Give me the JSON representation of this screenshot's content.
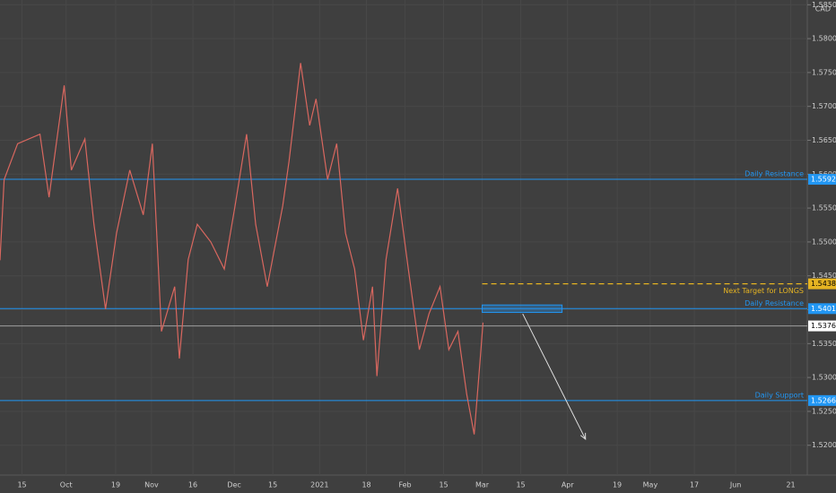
{
  "chart_data": {
    "type": "line",
    "currency": "CAD",
    "series": [
      {
        "color": "#d9675f",
        "x": [
          -8,
          -6.5,
          -1.6,
          6.5,
          9.8,
          15.3,
          17.9,
          22.8,
          26.1,
          30.3,
          34.3,
          39.1,
          44.0,
          47.3,
          50.6,
          55.4,
          57.1,
          60.3,
          63.6,
          68.5,
          73.4,
          77.3,
          81.5,
          84.8,
          89.0,
          94.6,
          96.9,
          101.1,
          104.4,
          106.7,
          110.9,
          114.2,
          117.4,
          120.7,
          123.9,
          127.2,
          128.8,
          132.1,
          136.3,
          140.2,
          144.2,
          147.7,
          151.7,
          154.9,
          158.2,
          161.4,
          164.1,
          166.3,
          167.3
        ],
        "values": [
          1.5473,
          1.5592,
          1.5645,
          1.5659,
          1.5566,
          1.5731,
          1.5606,
          1.5652,
          1.5526,
          1.5401,
          1.5513,
          1.5606,
          1.554,
          1.5645,
          1.5368,
          1.5434,
          1.5328,
          1.5474,
          1.5526,
          1.55,
          1.546,
          1.5553,
          1.5659,
          1.5526,
          1.5434,
          1.5553,
          1.5619,
          1.5764,
          1.5672,
          1.5711,
          1.5592,
          1.5645,
          1.5513,
          1.546,
          1.5355,
          1.5434,
          1.5302,
          1.5474,
          1.5579,
          1.546,
          1.5341,
          1.5394,
          1.5434,
          1.5341,
          1.5368,
          1.5275,
          1.5216,
          1.5328,
          1.5381
        ]
      }
    ],
    "levels": [
      {
        "name": "Daily Resistance",
        "value": 1.55924,
        "color": "#2196f3",
        "style": "solid"
      },
      {
        "name": "Next Target for LONGS",
        "value": 1.54382,
        "color": "#e6b422",
        "style": "dashed"
      },
      {
        "name": "Daily Resistance",
        "value": 1.54016,
        "color": "#2196f3",
        "style": "solid"
      },
      {
        "value": 1.53761,
        "color": "#9e9e9e",
        "style": "solid"
      },
      {
        "name": "Daily Support",
        "value": {
          "value": 1.5266,
          "label": "1.52660"
        },
        "color": "#2196f3",
        "style": "solid"
      }
    ],
    "zone": {
      "x": [
        167,
        196
      ],
      "y": [
        1.5396,
        1.5407
      ],
      "color": "#2196f3"
    },
    "arrow": {
      "x": [
        181.7,
        204.5
      ],
      "y": [
        1.5394,
        1.5209
      ],
      "color": "#dddddd"
    },
    "xlim": [
      -8,
      285
    ],
    "ylim": [
      1.5156,
      1.5857
    ],
    "grid": true,
    "xticks": [
      {
        "value": 0,
        "label": "15"
      },
      {
        "value": 16,
        "label": "Oct"
      },
      {
        "value": 34,
        "label": "19"
      },
      {
        "value": 47,
        "label": "Nov"
      },
      {
        "value": 62,
        "label": "16"
      },
      {
        "value": 77,
        "label": "Dec"
      },
      {
        "value": 91,
        "label": "15"
      },
      {
        "value": 108,
        "label": "2021"
      },
      {
        "value": 125,
        "label": "18"
      },
      {
        "value": 139,
        "label": "Feb"
      },
      {
        "value": 153,
        "label": "15"
      },
      {
        "value": 167,
        "label": "Mar"
      },
      {
        "value": 181,
        "label": "15"
      },
      {
        "value": 198,
        "label": "Apr"
      },
      {
        "value": 216,
        "label": "19"
      },
      {
        "value": 228,
        "label": "May"
      },
      {
        "value": 244,
        "label": "17"
      },
      {
        "value": 259,
        "label": "Jun"
      },
      {
        "value": 279,
        "label": "21"
      }
    ],
    "yticks": [
      {
        "value": 1.52,
        "label": "1.52000"
      },
      {
        "value": 1.525,
        "label": "1.52500"
      },
      {
        "value": 1.53,
        "label": "1.53000"
      },
      {
        "value": 1.535,
        "label": "1.53500"
      },
      {
        "value": 1.54,
        "label": "1.54000"
      },
      {
        "value": 1.545,
        "label": "1.54500"
      },
      {
        "value": 1.55,
        "label": "1.55000"
      },
      {
        "value": 1.555,
        "label": "1.55500"
      },
      {
        "value": 1.56,
        "label": "1.56000"
      },
      {
        "value": 1.565,
        "label": "1.56500"
      },
      {
        "value": 1.57,
        "label": "1.57000"
      },
      {
        "value": 1.575,
        "label": "1.57500"
      },
      {
        "value": 1.58,
        "label": "1.58000"
      },
      {
        "value": 1.585,
        "label": "1.58500"
      }
    ]
  }
}
